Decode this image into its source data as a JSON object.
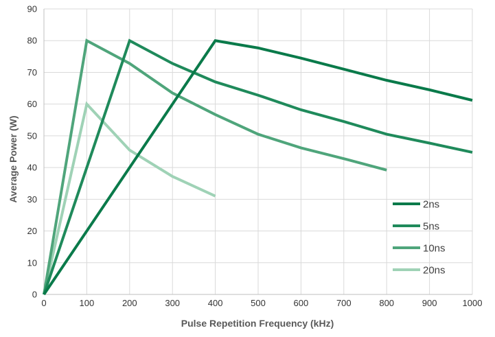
{
  "chart_data": {
    "type": "line",
    "xlabel": "Pulse Repetition Frequency (kHz)",
    "ylabel": "Average Power (W)",
    "xlim": [
      0,
      1000
    ],
    "ylim": [
      0,
      90
    ],
    "xticks": [
      "0",
      "100",
      "200",
      "300",
      "400",
      "500",
      "600",
      "700",
      "800",
      "900",
      "1000"
    ],
    "yticks": [
      "0",
      "10",
      "20",
      "30",
      "40",
      "50",
      "60",
      "70",
      "80",
      "90"
    ],
    "grid": true,
    "legend_position": "bottom-right",
    "series": [
      {
        "name": "2ns",
        "color": "#0a7a4a",
        "points": [
          [
            0,
            0
          ],
          [
            400,
            80
          ],
          [
            500,
            77.7
          ],
          [
            600,
            74.5
          ],
          [
            700,
            71
          ],
          [
            800,
            67.5
          ],
          [
            900,
            64.5
          ],
          [
            1000,
            61.2
          ]
        ]
      },
      {
        "name": "5ns",
        "color": "#1f8a5b",
        "points": [
          [
            0,
            0
          ],
          [
            200,
            80
          ],
          [
            300,
            72.8
          ],
          [
            400,
            67
          ],
          [
            500,
            62.8
          ],
          [
            600,
            58.2
          ],
          [
            700,
            54.5
          ],
          [
            800,
            50.5
          ],
          [
            900,
            47.7
          ],
          [
            1000,
            44.8
          ]
        ]
      },
      {
        "name": "10ns",
        "color": "#4fa57b",
        "points": [
          [
            0,
            0
          ],
          [
            100,
            80
          ],
          [
            200,
            72.8
          ],
          [
            300,
            63.5
          ],
          [
            400,
            56.7
          ],
          [
            500,
            50.5
          ],
          [
            600,
            46.2
          ],
          [
            700,
            42.8
          ],
          [
            800,
            39.2
          ]
        ]
      },
      {
        "name": "20ns",
        "color": "#9fd2b6",
        "points": [
          [
            0,
            0
          ],
          [
            100,
            60
          ],
          [
            200,
            45.5
          ],
          [
            300,
            37.2
          ],
          [
            400,
            31
          ]
        ]
      }
    ]
  }
}
